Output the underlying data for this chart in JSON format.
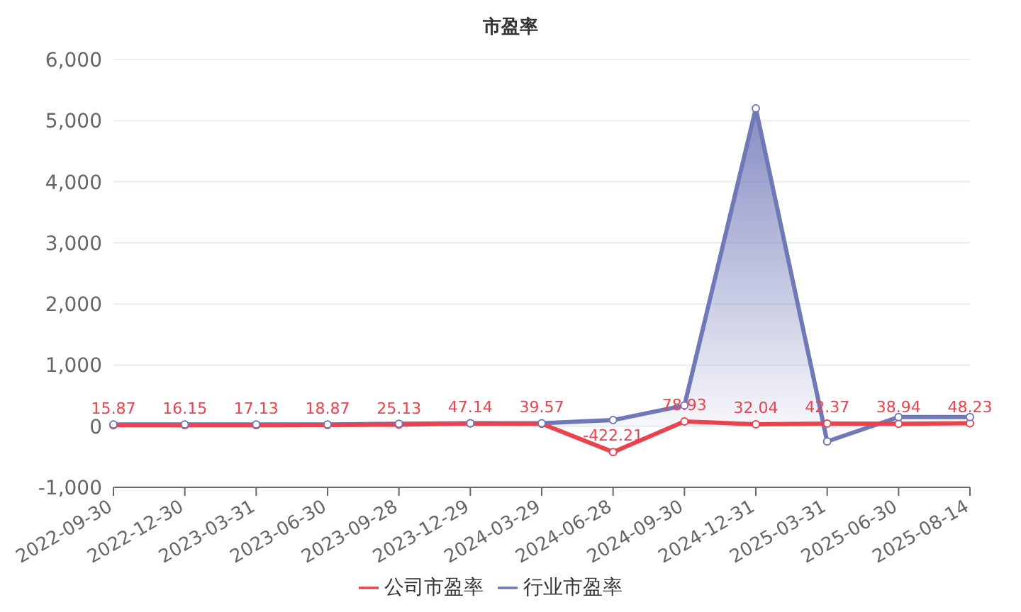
{
  "chart_data": {
    "type": "line",
    "title": "市盈率",
    "categories": [
      "2022-09-30",
      "2022-12-30",
      "2023-03-31",
      "2023-06-30",
      "2023-09-28",
      "2023-12-29",
      "2024-03-29",
      "2024-06-28",
      "2024-09-30",
      "2024-12-31",
      "2025-03-31",
      "2025-06-30",
      "2025-08-14"
    ],
    "series": [
      {
        "name": "公司市盈率",
        "color": "#e8434f",
        "values": [
          15.87,
          16.15,
          17.13,
          18.87,
          25.13,
          47.14,
          39.57,
          -422.21,
          78.93,
          32.04,
          42.37,
          38.94,
          48.23
        ],
        "value_labels": [
          "15.87",
          "16.15",
          "17.13",
          "18.87",
          "25.13",
          "47.14",
          "39.57",
          "-422.21",
          "78.93",
          "32.04",
          "42.37",
          "38.94",
          "48.23"
        ]
      },
      {
        "name": "行业市盈率",
        "type": "area",
        "color": "#7079b8",
        "values": [
          30,
          30,
          30,
          30,
          40,
          50,
          50,
          100,
          340,
          5200,
          -250,
          150,
          150
        ]
      }
    ],
    "ylim": [
      -1000,
      6000
    ],
    "yticks": [
      {
        "value": -1000,
        "label": "-1,000"
      },
      0,
      {
        "value": 1000,
        "label": "1,000"
      },
      {
        "value": 2000,
        "label": "2,000"
      },
      {
        "value": 3000,
        "label": "3,000"
      },
      {
        "value": 4000,
        "label": "4,000"
      },
      {
        "value": 5000,
        "label": "5,000"
      },
      {
        "value": 6000,
        "label": "6,000"
      }
    ],
    "grid": "y",
    "legend": "bottom",
    "marker": "circle",
    "line_style": "solid"
  }
}
